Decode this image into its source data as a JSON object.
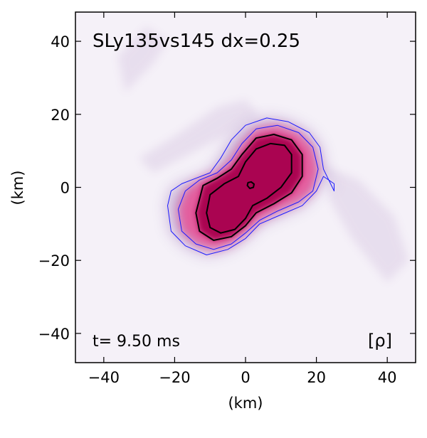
{
  "chart_data": {
    "type": "heatmap",
    "title": "SLy135vs145 dx=0.25",
    "time_label": "t= 9.50 ms",
    "field_label": "[ρ]",
    "xlabel": "(km)",
    "ylabel": "(km)",
    "xlim": [
      -48,
      48
    ],
    "ylim": [
      -48,
      48
    ],
    "xticks": [
      -40,
      -20,
      0,
      20,
      40
    ],
    "yticks": [
      -40,
      -20,
      0,
      20,
      40
    ],
    "tick_labels_x": [
      "−40",
      "−20",
      "0",
      "20",
      "40"
    ],
    "tick_labels_y": [
      "−40",
      "−20",
      "0",
      "20",
      "40"
    ],
    "colors": {
      "background": "#f5f1f8",
      "halo": "#8a5aa8",
      "mid": "#e94f94",
      "core": "#a8004e",
      "contour_blue": "#1a1aff",
      "contour_black": "#000000"
    },
    "contours": [
      {
        "name": "outer-blue",
        "color": "blue",
        "points": [
          [
            -22,
            -5
          ],
          [
            -21,
            -12
          ],
          [
            -17,
            -16
          ],
          [
            -11,
            -18.5
          ],
          [
            -5,
            -17
          ],
          [
            0,
            -14
          ],
          [
            4,
            -10
          ],
          [
            10,
            -7.5
          ],
          [
            16,
            -5
          ],
          [
            20,
            -1
          ],
          [
            22,
            3
          ],
          [
            25,
            1
          ],
          [
            25,
            -1
          ],
          [
            22,
            5
          ],
          [
            21,
            11
          ],
          [
            18,
            15
          ],
          [
            12,
            18
          ],
          [
            6,
            19
          ],
          [
            0,
            17
          ],
          [
            -4,
            13
          ],
          [
            -7,
            8
          ],
          [
            -10,
            4
          ],
          [
            -14,
            2.5
          ],
          [
            -18,
            1
          ],
          [
            -21,
            -1
          ]
        ]
      },
      {
        "name": "inner-blue",
        "color": "blue",
        "points": [
          [
            -19,
            -6
          ],
          [
            -18,
            -12
          ],
          [
            -14,
            -15.5
          ],
          [
            -9,
            -17
          ],
          [
            -4,
            -15.5
          ],
          [
            0,
            -12.5
          ],
          [
            4,
            -9
          ],
          [
            9,
            -6.5
          ],
          [
            15,
            -4
          ],
          [
            19,
            -1
          ],
          [
            20.5,
            5
          ],
          [
            19,
            11
          ],
          [
            15,
            15
          ],
          [
            9,
            17
          ],
          [
            3,
            16
          ],
          [
            -1,
            12
          ],
          [
            -4,
            7.5
          ],
          [
            -8,
            4
          ],
          [
            -13,
            2
          ],
          [
            -17,
            -1
          ]
        ]
      },
      {
        "name": "outer-black",
        "color": "black",
        "points": [
          [
            -14,
            -7
          ],
          [
            -13,
            -12
          ],
          [
            -9,
            -14.5
          ],
          [
            -4,
            -13.5
          ],
          [
            0,
            -10.5
          ],
          [
            3,
            -7
          ],
          [
            8,
            -4.5
          ],
          [
            13,
            -1.5
          ],
          [
            16,
            3
          ],
          [
            16,
            9
          ],
          [
            13,
            13
          ],
          [
            8,
            14.5
          ],
          [
            3,
            13.5
          ],
          [
            -1,
            9
          ],
          [
            -4,
            5
          ],
          [
            -8,
            2.5
          ],
          [
            -12,
            0.5
          ]
        ]
      },
      {
        "name": "inner-black",
        "color": "black",
        "points": [
          [
            -11,
            -7
          ],
          [
            -10,
            -11
          ],
          [
            -7,
            -12.5
          ],
          [
            -3,
            -11.5
          ],
          [
            0,
            -8.5
          ],
          [
            2,
            -5
          ],
          [
            6,
            -3
          ],
          [
            10,
            0
          ],
          [
            13,
            4
          ],
          [
            13,
            9
          ],
          [
            11,
            11.5
          ],
          [
            7,
            12
          ],
          [
            3,
            10.5
          ],
          [
            0,
            7
          ],
          [
            -2,
            3
          ],
          [
            -6,
            1
          ],
          [
            -10,
            -2
          ]
        ]
      },
      {
        "name": "center-black",
        "color": "black",
        "points": [
          [
            0.5,
            0.5
          ],
          [
            1.2,
            -0.3
          ],
          [
            2.2,
            0
          ],
          [
            2.4,
            0.9
          ],
          [
            1.6,
            1.5
          ],
          [
            0.7,
            1.3
          ]
        ]
      }
    ]
  }
}
